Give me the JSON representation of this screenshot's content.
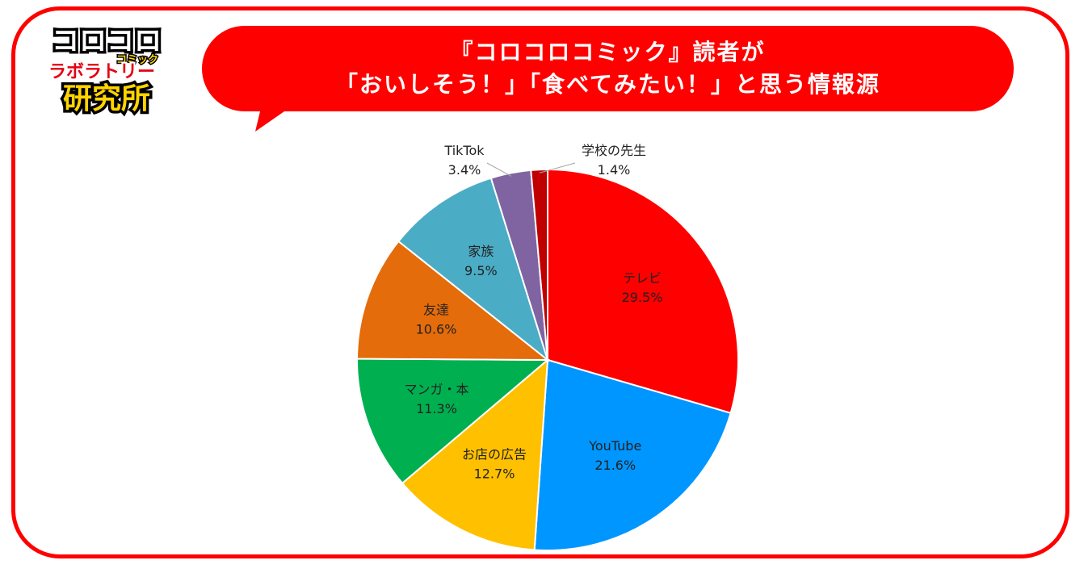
{
  "logo": {
    "line1": "コロコロ",
    "line2": "ラボラトリー",
    "tag": "コミック",
    "line3": "研究所"
  },
  "title": {
    "line1": "『コロコロコミック』読者が",
    "line2": "「おいしそう！」「食べてみたい！」と思う情報源"
  },
  "colors": {
    "frame": "#ff0000",
    "bubble": "#ff0000"
  },
  "chart_data": {
    "type": "pie",
    "unit": "%",
    "slices": [
      {
        "label": "テレビ",
        "value": 29.5,
        "display": "29.5%",
        "color": "#ff0000"
      },
      {
        "label": "YouTube",
        "value": 21.6,
        "display": "21.6%",
        "color": "#0096ff"
      },
      {
        "label": "お店の広告",
        "value": 12.7,
        "display": "12.7%",
        "color": "#ffc000"
      },
      {
        "label": "マンガ・本",
        "value": 11.3,
        "display": "11.3%",
        "color": "#00b050"
      },
      {
        "label": "友達",
        "value": 10.6,
        "display": "10.6%",
        "color": "#e46c0a"
      },
      {
        "label": "家族",
        "value": 9.5,
        "display": "9.5%",
        "color": "#4bacc6"
      },
      {
        "label": "TikTok",
        "value": 3.4,
        "display": "3.4%",
        "color": "#8064a2"
      },
      {
        "label": "学校の先生",
        "value": 1.4,
        "display": "1.4%",
        "color": "#c00000"
      }
    ]
  }
}
